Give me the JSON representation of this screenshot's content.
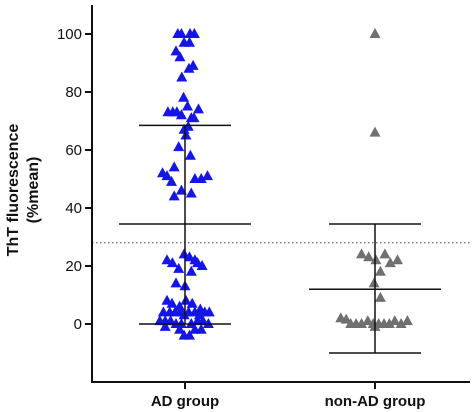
{
  "chart_data": {
    "type": "scatter",
    "ylabel_line1": "ThT fluorescence",
    "ylabel_line2": "(%mean)",
    "ylim": [
      -20,
      110
    ],
    "yticks": [
      0,
      20,
      40,
      60,
      80,
      100
    ],
    "yticks_labels": [
      "0",
      "20",
      "40",
      "60",
      "80",
      "100"
    ],
    "categories": [
      "AD group",
      "non-AD group"
    ],
    "reference_line": {
      "value": 28,
      "style": "dotted"
    },
    "series": [
      {
        "color": "#1515e6",
        "marker": "triangle",
        "summary": {
          "mean": 34.5,
          "upper": 68.5,
          "lower": 0
        },
        "points": [
          {
            "y": 100,
            "j": -0.4
          },
          {
            "y": 100,
            "j": -0.2
          },
          {
            "y": 100,
            "j": 0.28
          },
          {
            "y": 100,
            "j": 0.52
          },
          {
            "y": 97,
            "j": -0.05
          },
          {
            "y": 97,
            "j": 0.25
          },
          {
            "y": 94,
            "j": -0.5
          },
          {
            "y": 92,
            "j": -0.28
          },
          {
            "y": 89,
            "j": 0.45
          },
          {
            "y": 88,
            "j": 0.22
          },
          {
            "y": 85,
            "j": -0.18
          },
          {
            "y": 78,
            "j": -0.08
          },
          {
            "y": 75,
            "j": 0.14
          },
          {
            "y": 74,
            "j": 0.75
          },
          {
            "y": 73,
            "j": -0.95
          },
          {
            "y": 73,
            "j": -0.68
          },
          {
            "y": 73,
            "j": -0.45
          },
          {
            "y": 72,
            "j": -0.2
          },
          {
            "y": 71,
            "j": 0.35
          },
          {
            "y": 71,
            "j": 0.5
          },
          {
            "y": 68,
            "j": 0.18
          },
          {
            "y": 67,
            "j": -0.05
          },
          {
            "y": 65,
            "j": 0.05
          },
          {
            "y": 61,
            "j": -0.35
          },
          {
            "y": 58,
            "j": 0.3
          },
          {
            "y": 54,
            "j": -0.6
          },
          {
            "y": 52,
            "j": -1.25
          },
          {
            "y": 51,
            "j": -1.0
          },
          {
            "y": 51,
            "j": 1.25
          },
          {
            "y": 50,
            "j": 0.55
          },
          {
            "y": 50,
            "j": 0.9
          },
          {
            "y": 49,
            "j": -0.75
          },
          {
            "y": 46,
            "j": -0.2
          },
          {
            "y": 45,
            "j": 0.35
          },
          {
            "y": 44,
            "j": -0.6
          },
          {
            "y": 24,
            "j": -0.05
          },
          {
            "y": 23,
            "j": 0.25
          },
          {
            "y": 22,
            "j": 0.55
          },
          {
            "y": 22,
            "j": -1.0
          },
          {
            "y": 21,
            "j": -0.7
          },
          {
            "y": 21,
            "j": 0.7
          },
          {
            "y": 20,
            "j": 0.95
          },
          {
            "y": 19,
            "j": -0.35
          },
          {
            "y": 18,
            "j": 0.35
          },
          {
            "y": 14,
            "j": -0.5
          },
          {
            "y": 13,
            "j": 0.0
          },
          {
            "y": 8,
            "j": -1.0
          },
          {
            "y": 8,
            "j": 0.05
          },
          {
            "y": 7,
            "j": -0.72
          },
          {
            "y": 7,
            "j": 0.4
          },
          {
            "y": 6,
            "j": -0.3
          },
          {
            "y": 5,
            "j": 0.85
          },
          {
            "y": 4,
            "j": -1.2
          },
          {
            "y": 4,
            "j": -0.85
          },
          {
            "y": 4,
            "j": -0.55
          },
          {
            "y": 4,
            "j": -0.25
          },
          {
            "y": 4,
            "j": 0.2
          },
          {
            "y": 4,
            "j": 0.55
          },
          {
            "y": 4,
            "j": 1.1
          },
          {
            "y": 4,
            "j": 1.35
          },
          {
            "y": 3,
            "j": -0.05
          },
          {
            "y": 3,
            "j": 0.8
          },
          {
            "y": 1,
            "j": -1.4
          },
          {
            "y": 1,
            "j": -1.1
          },
          {
            "y": 1,
            "j": -0.8
          },
          {
            "y": 1,
            "j": 0.7
          },
          {
            "y": 1,
            "j": 1.0
          },
          {
            "y": 0,
            "j": -0.5
          },
          {
            "y": 0,
            "j": -0.2
          },
          {
            "y": 0,
            "j": 0.35
          },
          {
            "y": 0,
            "j": 1.3
          },
          {
            "y": -1,
            "j": -1.1
          },
          {
            "y": -2,
            "j": -0.3
          },
          {
            "y": -2,
            "j": 0.55
          },
          {
            "y": -2,
            "j": 0.9
          },
          {
            "y": -4,
            "j": -0.05
          },
          {
            "y": -4,
            "j": 0.25
          }
        ]
      },
      {
        "color": "#707070",
        "marker": "triangle",
        "summary": {
          "mean": 12,
          "upper": 34.5,
          "lower": -10
        },
        "points": [
          {
            "y": 100,
            "j": 0.0
          },
          {
            "y": 66,
            "j": 0.0
          },
          {
            "y": 24,
            "j": -0.75
          },
          {
            "y": 24,
            "j": 0.55
          },
          {
            "y": 23,
            "j": -0.35
          },
          {
            "y": 22,
            "j": 0.05
          },
          {
            "y": 22,
            "j": 1.25
          },
          {
            "y": 21,
            "j": 0.85
          },
          {
            "y": 18,
            "j": 0.3
          },
          {
            "y": 14,
            "j": -0.05
          },
          {
            "y": 9,
            "j": 0.3
          },
          {
            "y": 2,
            "j": -1.9
          },
          {
            "y": 1.5,
            "j": -1.6
          },
          {
            "y": 1,
            "j": -0.4
          },
          {
            "y": 1,
            "j": 1.1
          },
          {
            "y": 1,
            "j": 1.8
          },
          {
            "y": 0,
            "j": -1.35
          },
          {
            "y": 0,
            "j": -1.05
          },
          {
            "y": 0,
            "j": -0.75
          },
          {
            "y": 0,
            "j": -0.1
          },
          {
            "y": 0,
            "j": 0.2
          },
          {
            "y": 0,
            "j": 0.5
          },
          {
            "y": 0,
            "j": 0.8
          },
          {
            "y": 0,
            "j": 1.45
          },
          {
            "y": -1,
            "j": 0.0
          }
        ]
      }
    ]
  }
}
